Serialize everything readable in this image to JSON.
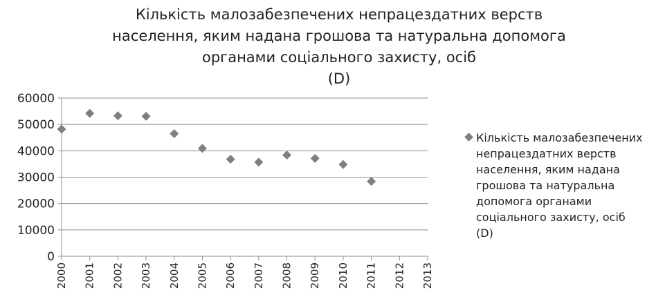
{
  "chart_data": {
    "type": "scatter",
    "title_lines": [
      "Кількість малозабезпечених непрацездатних верств",
      "населення, яким надана грошова та натуральна допомога",
      "органами соціального захисту, осіб",
      "(D)"
    ],
    "x": [
      2000,
      2001,
      2002,
      2003,
      2004,
      2005,
      2006,
      2007,
      2008,
      2009,
      2010,
      2011
    ],
    "x_tick_labels": [
      "2000",
      "2001",
      "2002",
      "2003",
      "2004",
      "2005",
      "2006",
      "2007",
      "2008",
      "2009",
      "2010",
      "2011",
      "2012",
      "2013"
    ],
    "xlim": [
      2000,
      2013
    ],
    "y_tick_labels": [
      "0",
      "10000",
      "20000",
      "30000",
      "40000",
      "50000",
      "60000"
    ],
    "ylim": [
      0,
      60000
    ],
    "grid": true,
    "legend_position": "right",
    "series": [
      {
        "name_lines": [
          "Кількість малозабезпечених",
          "непрацездатних верств",
          "населення, яким надана",
          "грошова та натуральна",
          "допомога органами",
          "соціального захисту, осіб",
          "(D)"
        ],
        "marker": "diamond",
        "color": "#7f7f7f",
        "values": [
          48200,
          54200,
          53300,
          53100,
          46500,
          40900,
          36800,
          35700,
          38400,
          37100,
          34800,
          28400
        ]
      }
    ]
  }
}
